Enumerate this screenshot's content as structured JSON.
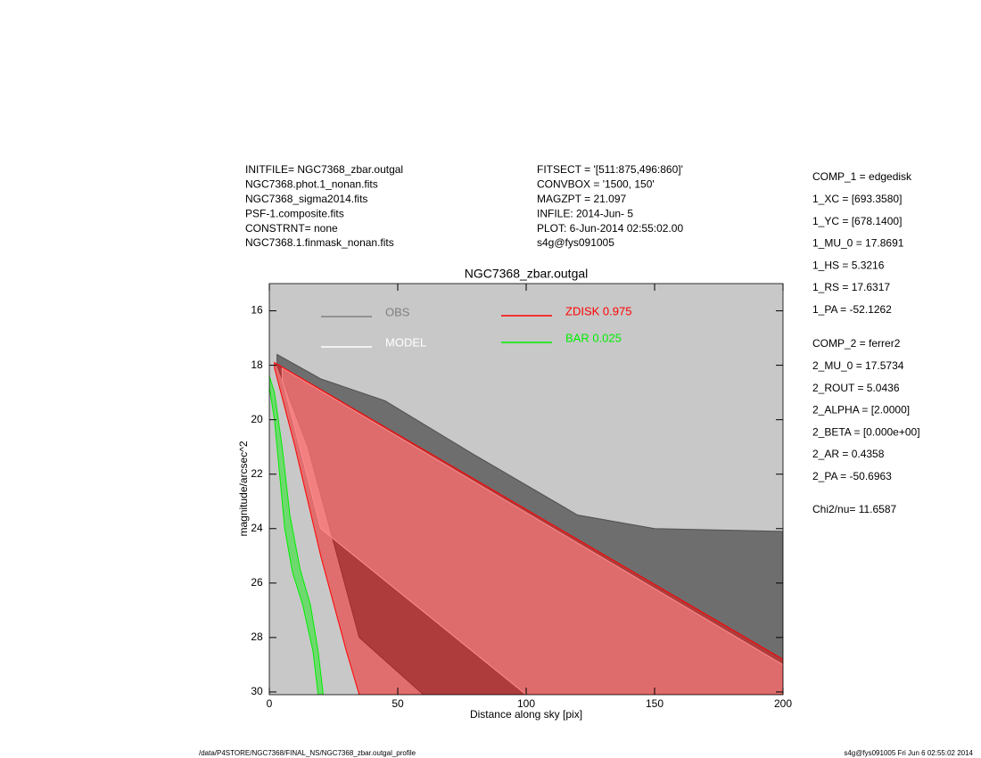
{
  "header": {
    "left": [
      "INITFILE= NGC7368_zbar.outgal",
      "NGC7368.phot.1_nonan.fits",
      "NGC7368_sigma2014.fits",
      "PSF-1.composite.fits",
      "CONSTRNT= none",
      "NGC7368.1.finmask_nonan.fits"
    ],
    "middle": [
      "FITSECT = '[511:875,496:860]'",
      "CONVBOX = '1500, 150'",
      "MAGZPT =            21.097",
      "INFILE: 2014-Jun- 5",
      "PLOT:  6-Jun-2014 02:55:02.00",
      "s4g@fys091005"
    ]
  },
  "parameters": {
    "comp1": [
      "COMP_1  = edgedisk",
      "1_XC    = [693.3580]",
      "1_YC    = [678.1400]",
      "1_MU_0  = 17.8691",
      "1_HS    = 5.3216",
      "1_RS    = 17.6317",
      "1_PA    = -52.1262"
    ],
    "comp2": [
      "COMP_2  = ferrer2",
      "2_MU_0  = 17.5734",
      "2_ROUT  = 5.0436",
      "2_ALPHA = [2.0000]",
      "2_BETA  = [0.000e+00]",
      "2_AR    = 0.4358",
      "2_PA    = -50.6963"
    ],
    "chi": "Chi2/nu=      11.6587"
  },
  "footer": {
    "left": "/data/P4STORE/NGC7368/FINAL_NS/NGC7368_zbar.outgal_profile",
    "right": "s4g@fys091005  Fri Jun  6 02:55:02 2014"
  },
  "chart_data": {
    "type": "region",
    "title": "NGC7368_zbar.outgal",
    "x_label": "Distance along sky [pix]",
    "y_label": "magnitude/arcsec^2",
    "xlim": [
      0,
      200
    ],
    "xticks": [
      0,
      50,
      100,
      150,
      200
    ],
    "ylim": [
      30.1,
      15
    ],
    "yticks": [
      16,
      18,
      20,
      22,
      24,
      26,
      28,
      30
    ],
    "background": "#c8c8c8",
    "series": [
      {
        "name": "OBS",
        "color": "#505050",
        "legend_color": "#808080",
        "x": [
          3,
          20,
          45,
          80,
          120,
          150,
          200,
          200,
          60,
          35,
          15,
          3
        ],
        "values": [
          17.6,
          18.5,
          19.3,
          21.3,
          23.5,
          24.0,
          24.1,
          30.1,
          30.1,
          28,
          21,
          18
        ]
      },
      {
        "name": "MODEL",
        "color": "#ffffff",
        "legend_color": "#ffffff",
        "x": [
          5,
          200,
          200,
          100,
          20,
          5
        ],
        "values": [
          18.1,
          29.0,
          30.1,
          30.1,
          24,
          18.5
        ]
      },
      {
        "name": "ZDISK  0.975",
        "color": "#ff0000",
        "legend_color": "#ff0000",
        "x": [
          2,
          200,
          200,
          35,
          30,
          20,
          10,
          2
        ],
        "values": [
          17.9,
          28.8,
          30.1,
          30.1,
          28.5,
          25,
          21,
          18.1
        ]
      },
      {
        "name": "BAR  0.025",
        "color": "#00ee00",
        "legend_color": "#00ee00",
        "x": [
          0,
          2,
          5,
          8,
          12,
          16,
          19,
          21,
          19,
          17,
          13,
          9,
          6,
          4,
          2,
          0
        ],
        "values": [
          18.4,
          19,
          21,
          23.5,
          25.5,
          26.8,
          28.5,
          30.1,
          30.1,
          28.5,
          26.8,
          25.6,
          24,
          22,
          20,
          18.8
        ]
      }
    ]
  }
}
